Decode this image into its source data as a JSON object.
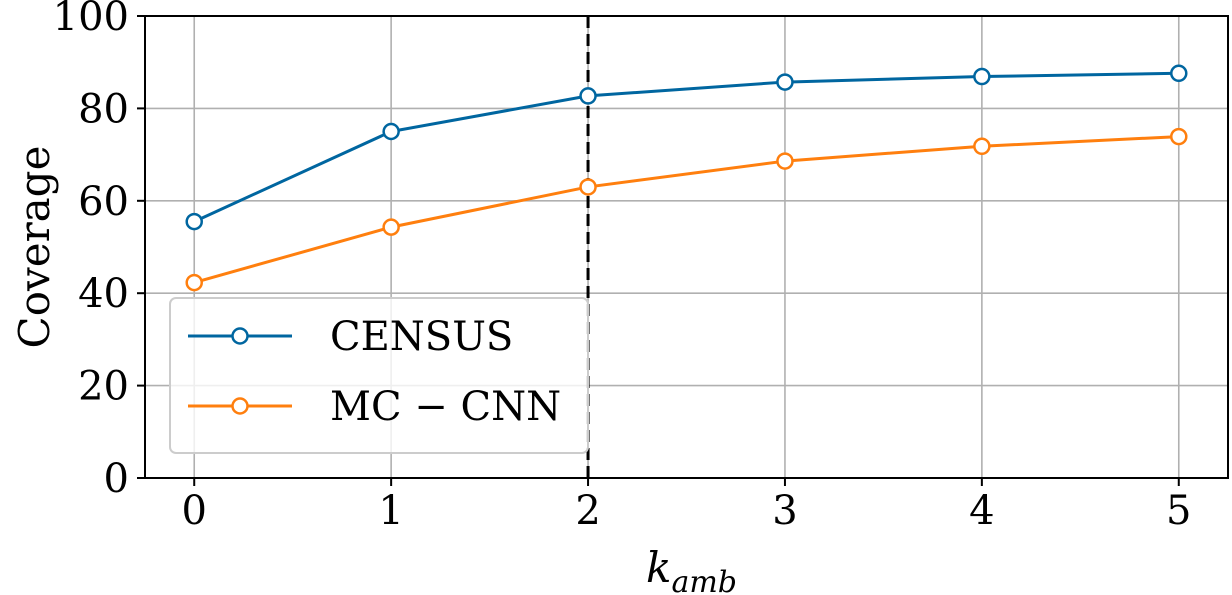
{
  "chart_data": {
    "type": "line",
    "x": [
      0,
      1,
      2,
      3,
      4,
      5
    ],
    "xlim": [
      -0.25,
      5.25
    ],
    "ylim": [
      0,
      100
    ],
    "xticks": [
      "0",
      "1",
      "2",
      "3",
      "4",
      "5"
    ],
    "yticks": [
      "0",
      "20",
      "40",
      "60",
      "80",
      "100"
    ],
    "xlabel": {
      "main": "k",
      "sub": "amb"
    },
    "ylabel": "Coverage",
    "grid": true,
    "legend_position": "lower-left",
    "marker": "open-circle",
    "vline": {
      "x": 2,
      "style": "dashed",
      "color": "#000000"
    },
    "series": [
      {
        "name": "CENSUS",
        "color": "#0066a0",
        "values": [
          55.5,
          75.0,
          82.7,
          85.7,
          86.9,
          87.6
        ]
      },
      {
        "name": "MC − CNN",
        "color": "#ff7f0e",
        "values": [
          42.3,
          54.3,
          63.0,
          68.6,
          71.8,
          73.9
        ]
      }
    ]
  }
}
